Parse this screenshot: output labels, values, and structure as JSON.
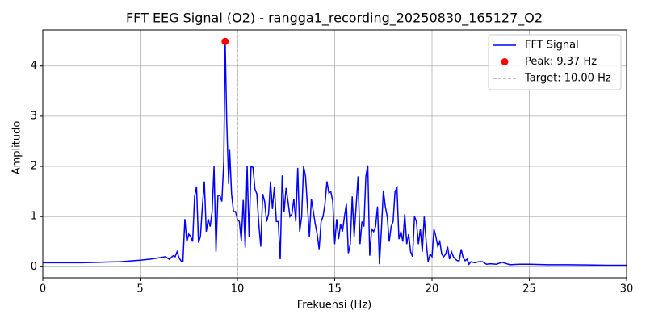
{
  "chart_data": {
    "type": "line",
    "title": "FFT EEG Signal (O2) - rangga1_recording_20250830_165127_O2",
    "xlabel": "Frekuensi (Hz)",
    "ylabel": "Amplitudo",
    "xlim": [
      0,
      30
    ],
    "ylim": [
      -0.22,
      4.72
    ],
    "xticks": [
      0,
      5,
      10,
      15,
      20,
      25,
      30
    ],
    "yticks": [
      0,
      1,
      2,
      3,
      4
    ],
    "grid": true,
    "legend": "upper right",
    "series": [
      {
        "name": "FFT Signal",
        "color": "#0000ff",
        "x": [
          0,
          1,
          2,
          3,
          4,
          5,
          5.5,
          6,
          6.3,
          6.5,
          6.7,
          6.8,
          6.9,
          7.0,
          7.1,
          7.2,
          7.3,
          7.4,
          7.5,
          7.6,
          7.7,
          7.8,
          7.9,
          8.0,
          8.1,
          8.2,
          8.3,
          8.4,
          8.5,
          8.6,
          8.7,
          8.8,
          8.9,
          9.0,
          9.1,
          9.2,
          9.3,
          9.37,
          9.45,
          9.55,
          9.6,
          9.7,
          9.8,
          9.9,
          10.0,
          10.1,
          10.2,
          10.3,
          10.4,
          10.5,
          10.6,
          10.7,
          10.8,
          10.9,
          11.0,
          11.1,
          11.2,
          11.3,
          11.4,
          11.5,
          11.6,
          11.7,
          11.8,
          11.9,
          12.0,
          12.1,
          12.2,
          12.3,
          12.4,
          12.5,
          12.6,
          12.7,
          12.8,
          12.9,
          13.0,
          13.1,
          13.2,
          13.3,
          13.4,
          13.5,
          13.6,
          13.7,
          13.8,
          13.9,
          14.0,
          14.1,
          14.2,
          14.3,
          14.4,
          14.5,
          14.6,
          14.7,
          14.8,
          14.9,
          15.0,
          15.1,
          15.2,
          15.3,
          15.4,
          15.5,
          15.6,
          15.7,
          15.8,
          15.9,
          16.0,
          16.1,
          16.2,
          16.3,
          16.4,
          16.5,
          16.6,
          16.7,
          16.8,
          16.9,
          17.0,
          17.1,
          17.2,
          17.3,
          17.4,
          17.5,
          17.6,
          17.7,
          17.8,
          17.9,
          18.0,
          18.1,
          18.2,
          18.3,
          18.4,
          18.5,
          18.6,
          18.7,
          18.8,
          18.9,
          19.0,
          19.1,
          19.2,
          19.3,
          19.4,
          19.5,
          19.6,
          19.7,
          19.8,
          19.9,
          20.0,
          20.1,
          20.2,
          20.3,
          20.4,
          20.5,
          20.6,
          20.7,
          20.8,
          20.9,
          21.0,
          21.1,
          21.2,
          21.3,
          21.4,
          21.5,
          21.6,
          21.7,
          21.8,
          21.9,
          22.0,
          22.2,
          22.4,
          22.6,
          22.8,
          23.0,
          23.3,
          23.6,
          24.0,
          24.5,
          25,
          26,
          27,
          28,
          29,
          30
        ],
        "values": [
          0.08,
          0.08,
          0.08,
          0.09,
          0.1,
          0.13,
          0.15,
          0.18,
          0.2,
          0.15,
          0.22,
          0.2,
          0.3,
          0.18,
          0.12,
          0.1,
          0.95,
          0.5,
          0.65,
          0.6,
          0.5,
          1.4,
          1.6,
          0.48,
          0.6,
          1.2,
          1.7,
          0.7,
          0.95,
          0.8,
          1.1,
          2.0,
          0.3,
          1.42,
          1.42,
          1.3,
          2.1,
          4.49,
          2.9,
          1.65,
          2.33,
          1.45,
          1.1,
          1.1,
          0.95,
          0.9,
          0.52,
          1.33,
          0.38,
          2.0,
          0.6,
          2.0,
          1.98,
          1.55,
          1.45,
          0.85,
          0.4,
          1.45,
          1.3,
          0.9,
          1.05,
          1.7,
          1.15,
          1.6,
          0.9,
          0.9,
          0.15,
          1.82,
          1.1,
          1.57,
          1.3,
          1.0,
          1.05,
          1.35,
          0.9,
          1.97,
          0.7,
          1.0,
          2.0,
          1.8,
          1.2,
          0.6,
          1.35,
          1.1,
          0.85,
          0.65,
          0.35,
          0.9,
          1.0,
          1.25,
          1.7,
          1.47,
          1.5,
          1.3,
          0.45,
          0.95,
          0.55,
          0.85,
          0.7,
          1.0,
          1.25,
          0.27,
          0.45,
          1.4,
          0.6,
          1.2,
          1.8,
          0.45,
          0.9,
          0.8,
          1.8,
          2.02,
          0.22,
          0.75,
          0.7,
          0.8,
          1.2,
          0.05,
          0.75,
          1.52,
          1.2,
          1.0,
          0.5,
          0.8,
          0.9,
          1.5,
          1.57,
          0.55,
          0.7,
          0.5,
          1.05,
          0.45,
          0.65,
          0.3,
          0.2,
          1.0,
          0.9,
          0.45,
          0.75,
          0.3,
          1.0,
          0.5,
          0.1,
          0.25,
          0.2,
          0.75,
          0.6,
          0.4,
          0.5,
          0.25,
          0.2,
          0.25,
          0.4,
          0.15,
          0.3,
          0.2,
          0.15,
          0.12,
          0.12,
          0.35,
          0.18,
          0.12,
          0.15,
          0.05,
          0.1,
          0.08,
          0.1,
          0.1,
          0.05,
          0.06,
          0.05,
          0.09,
          0.04,
          0.05,
          0.05,
          0.04,
          0.04,
          0.035,
          0.03,
          0.03
        ]
      }
    ],
    "peak": {
      "name": "Peak: 9.37 Hz",
      "color": "#ff0000",
      "x": 9.37,
      "value": 4.49
    },
    "target": {
      "name": "Target: 10.00 Hz",
      "color": "#808080",
      "x": 10
    }
  }
}
